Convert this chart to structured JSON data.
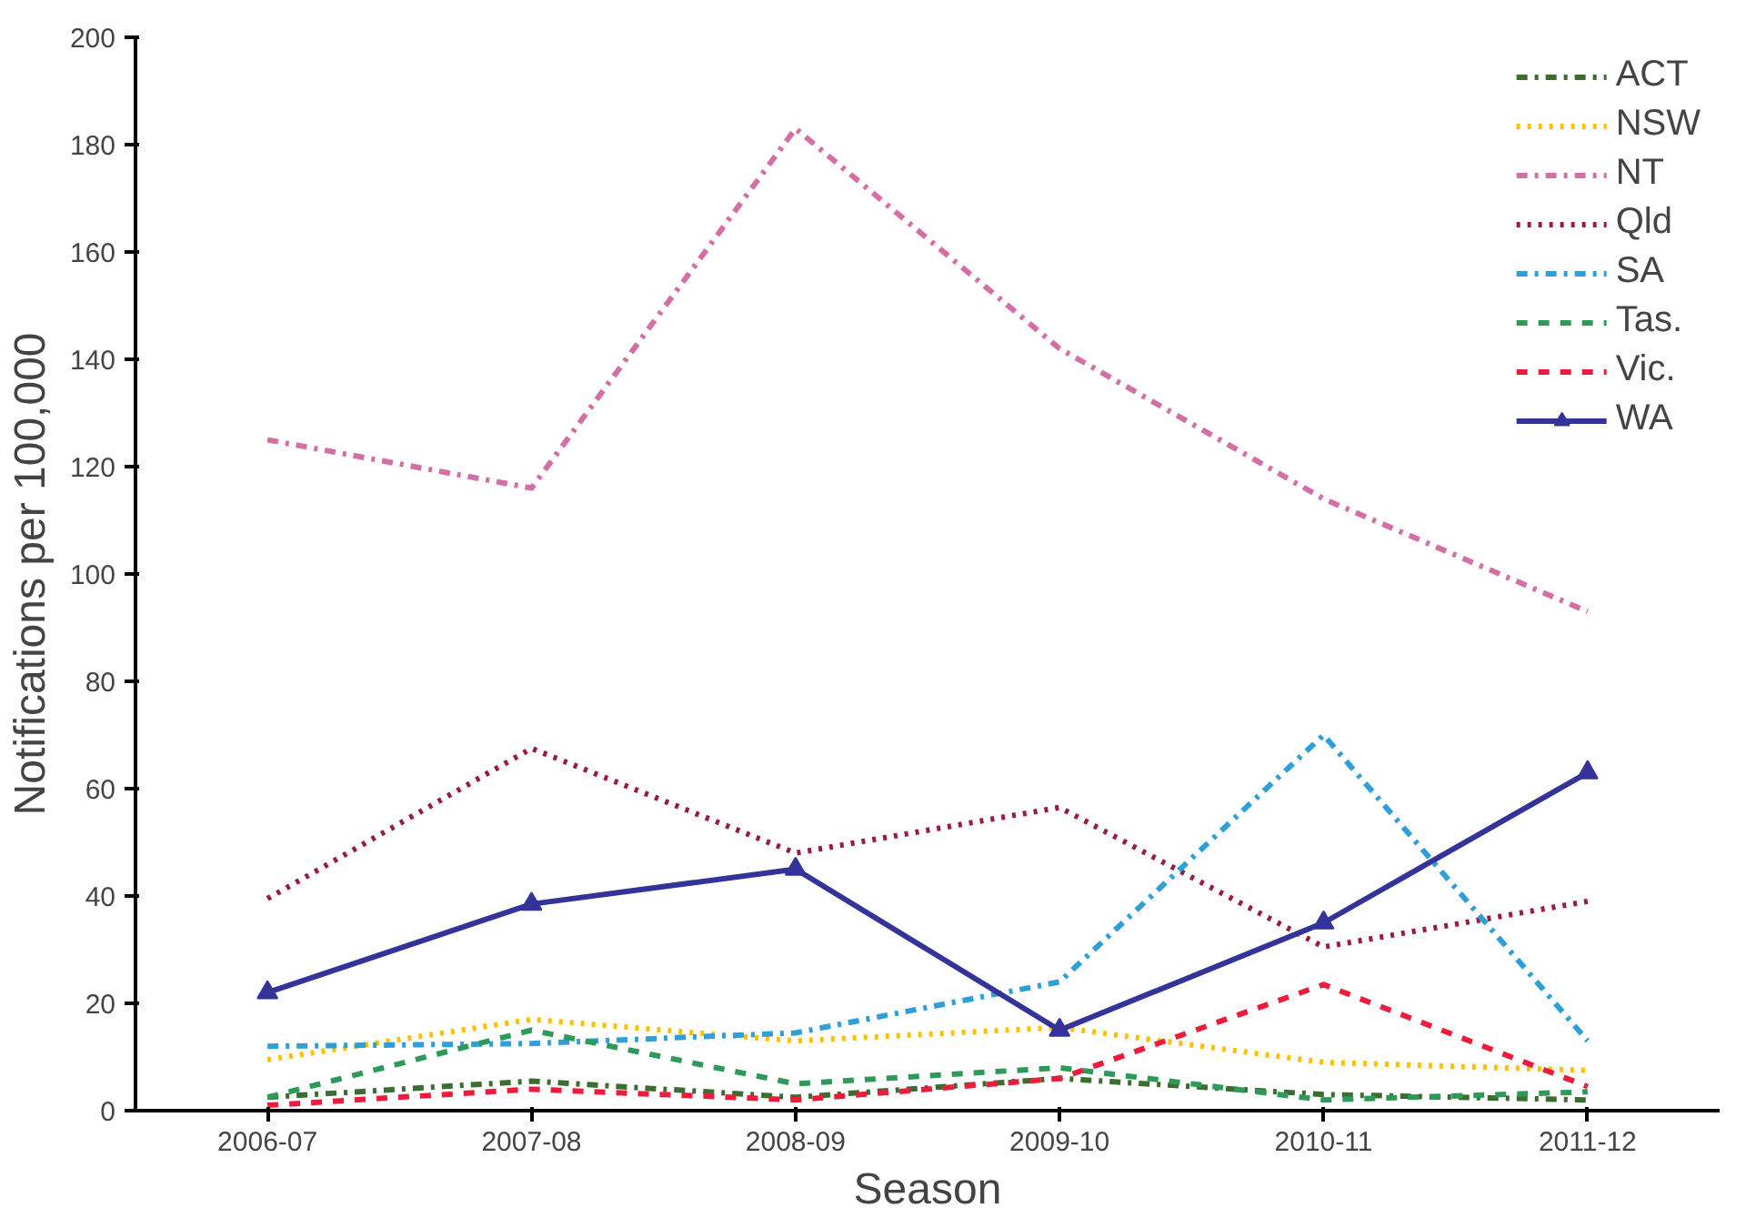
{
  "chart_data": {
    "type": "line",
    "xlabel": "Season",
    "ylabel": "Notifications per 100,000",
    "categories": [
      "2006-07",
      "2007-08",
      "2008-09",
      "2009-10",
      "2010-11",
      "2011-12"
    ],
    "ylim": [
      0,
      200
    ],
    "yticks": [
      0,
      20,
      40,
      60,
      80,
      100,
      120,
      140,
      160,
      180,
      200
    ],
    "grid": false,
    "legend": "top right",
    "marker": "none",
    "series": [
      {
        "name": "ACT",
        "color": "#3a6e2e",
        "line_style": "dashdot",
        "values": [
          2.5,
          5.5,
          2.5,
          6,
          3,
          2
        ]
      },
      {
        "name": "NSW",
        "color": "#ffc000",
        "line_style": "dotted",
        "values": [
          9.5,
          17,
          13,
          15.5,
          9,
          7.5
        ]
      },
      {
        "name": "NT",
        "color": "#d46fa5",
        "line_style": "dashdot",
        "values": [
          125,
          116,
          183,
          142,
          114,
          93
        ]
      },
      {
        "name": "Qld",
        "color": "#9b1b3c",
        "line_style": "dotted",
        "values": [
          39.5,
          67.5,
          48,
          56.5,
          30.5,
          39
        ]
      },
      {
        "name": "SA",
        "color": "#2e9fd8",
        "line_style": "dashdot",
        "values": [
          12,
          12.5,
          14.5,
          24,
          70,
          13
        ]
      },
      {
        "name": "Tas.",
        "color": "#2e9a5a",
        "line_style": "dashed",
        "values": [
          2.5,
          15,
          5,
          8,
          2,
          3.5
        ]
      },
      {
        "name": "Vic.",
        "color": "#ed1c3c",
        "line_style": "dashed",
        "values": [
          1,
          4,
          2,
          6,
          23.5,
          4.5
        ]
      },
      {
        "name": "WA",
        "color": "#333399",
        "line_style": "solid",
        "marker": "triangle",
        "values": [
          22,
          38.5,
          45,
          15,
          35,
          63
        ]
      }
    ]
  }
}
